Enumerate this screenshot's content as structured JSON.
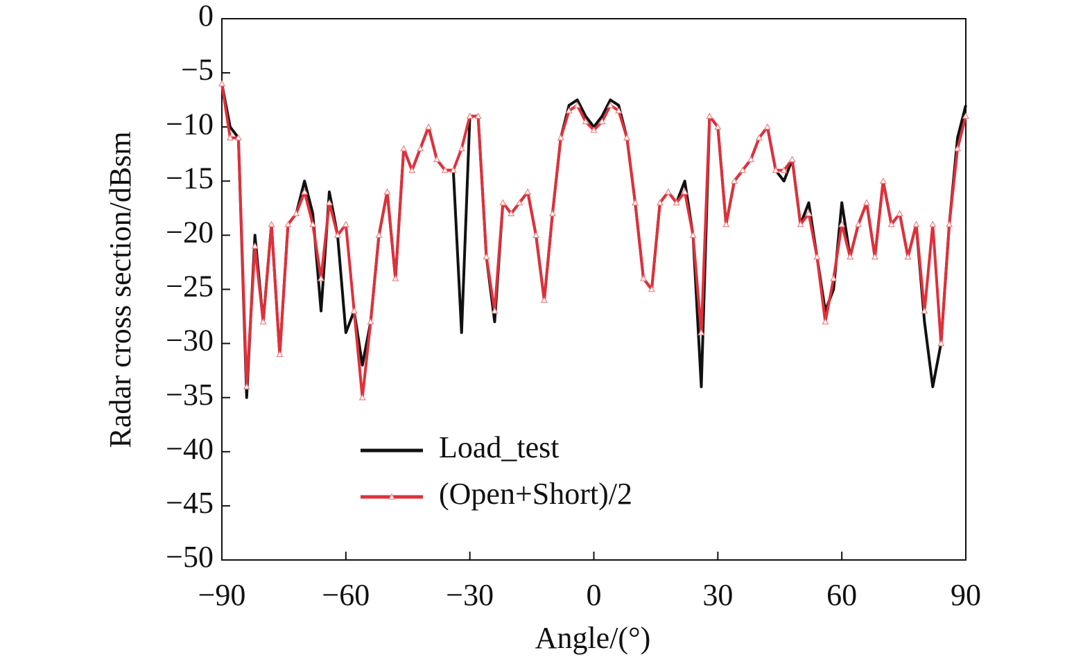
{
  "chart_data": {
    "type": "line",
    "xlabel": "Angle/(°)",
    "ylabel": "Radar cross section/dBsm",
    "x": [
      -90,
      -88,
      -86,
      -84,
      -82,
      -80,
      -78,
      -76,
      -74,
      -72,
      -70,
      -68,
      -66,
      -64,
      -62,
      -60,
      -58,
      -56,
      -54,
      -52,
      -50,
      -48,
      -46,
      -44,
      -42,
      -40,
      -38,
      -36,
      -34,
      -32,
      -30,
      -28,
      -26,
      -24,
      -22,
      -20,
      -18,
      -16,
      -14,
      -12,
      -10,
      -8,
      -6,
      -4,
      -2,
      0,
      2,
      4,
      6,
      8,
      10,
      12,
      14,
      16,
      18,
      20,
      22,
      24,
      26,
      28,
      30,
      32,
      34,
      36,
      38,
      40,
      42,
      44,
      46,
      48,
      50,
      52,
      54,
      56,
      58,
      60,
      62,
      64,
      66,
      68,
      70,
      72,
      74,
      76,
      78,
      80,
      82,
      84,
      86,
      88,
      90
    ],
    "series": [
      {
        "name": "Load_test",
        "color": "#111111",
        "marker": "none",
        "values": [
          -6,
          -10,
          -11,
          -35,
          -20,
          -28,
          -19,
          -31,
          -19,
          -18,
          -15,
          -18,
          -27,
          -16,
          -20,
          -29,
          -27,
          -32,
          -28,
          -20,
          -16,
          -24,
          -12,
          -14,
          -12,
          -10,
          -13,
          -14,
          -14,
          -29,
          -9,
          -9,
          -22,
          -28,
          -17,
          -18,
          -17,
          -16,
          -20,
          -26,
          -18,
          -11,
          -8,
          -7.5,
          -9,
          -10,
          -9,
          -7.5,
          -8,
          -11,
          -17,
          -24,
          -25,
          -17,
          -16,
          -17,
          -15,
          -20,
          -34,
          -9,
          -10,
          -19,
          -15,
          -14,
          -13,
          -11,
          -10,
          -14,
          -15,
          -13,
          -19,
          -17,
          -22,
          -27,
          -25,
          -17,
          -22,
          -19,
          -17,
          -22,
          -15,
          -19,
          -18,
          -22,
          -19,
          -28,
          -34,
          -30,
          -19,
          -11,
          -8
        ]
      },
      {
        "name": "(Open+Short)/2",
        "color": "#e0303a",
        "marker": "triangle",
        "values": [
          -6,
          -11,
          -11,
          -34,
          -21,
          -28,
          -19,
          -31,
          -19,
          -18,
          -16,
          -19,
          -24,
          -17,
          -20,
          -19,
          -27,
          -35,
          -28,
          -20,
          -16,
          -24,
          -12,
          -14,
          -12,
          -10,
          -13,
          -14,
          -14,
          -12,
          -9,
          -9,
          -22,
          -27,
          -17,
          -18,
          -17,
          -16,
          -20,
          -26,
          -18,
          -11,
          -8.5,
          -8,
          -9.5,
          -10.3,
          -9.5,
          -8,
          -8.5,
          -11,
          -17,
          -24,
          -25,
          -17,
          -16,
          -17,
          -16,
          -20,
          -29,
          -9,
          -10,
          -19,
          -15,
          -14,
          -13,
          -11,
          -10,
          -14,
          -14,
          -13,
          -19,
          -18,
          -22,
          -28,
          -24,
          -19,
          -22,
          -19,
          -17,
          -22,
          -15,
          -19,
          -18,
          -22,
          -19,
          -27,
          -19,
          -30,
          -19,
          -12,
          -9
        ]
      }
    ],
    "xlim": [
      -90,
      90
    ],
    "xticks": [
      {
        "value": -90,
        "label": "−90"
      },
      {
        "value": -60,
        "label": "−60"
      },
      {
        "value": -30,
        "label": "−30"
      },
      0,
      30,
      60,
      90
    ],
    "ylim": [
      -50,
      0
    ],
    "yticks": [
      0,
      {
        "value": -5,
        "label": "−5"
      },
      {
        "value": -10,
        "label": "−10"
      },
      {
        "value": -15,
        "label": "−15"
      },
      {
        "value": -20,
        "label": "−20"
      },
      {
        "value": -25,
        "label": "−25"
      },
      {
        "value": -30,
        "label": "−30"
      },
      {
        "value": -35,
        "label": "−35"
      },
      {
        "value": -40,
        "label": "−40"
      },
      {
        "value": -45,
        "label": "−45"
      },
      {
        "value": -50,
        "label": "−50"
      }
    ],
    "grid": false,
    "legend": "lower left"
  }
}
